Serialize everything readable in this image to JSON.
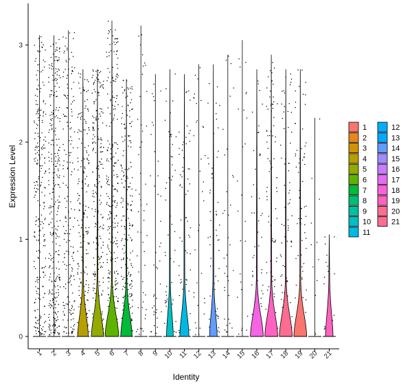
{
  "chart_data": {
    "type": "violin",
    "xlabel": "Identity",
    "ylabel": "Expression Level",
    "ylim": [
      -0.13,
      3.45
    ],
    "yticks": [
      0,
      1,
      2,
      3
    ],
    "categories": [
      "1",
      "2",
      "3",
      "4",
      "5",
      "6",
      "7",
      "8",
      "9",
      "10",
      "11",
      "12",
      "13",
      "14",
      "15",
      "16",
      "17",
      "18",
      "19",
      "20",
      "21"
    ],
    "colors": [
      "#F8766D",
      "#E88526",
      "#D39200",
      "#B79F00",
      "#93AA00",
      "#5EB300",
      "#00BA38",
      "#00BF74",
      "#00C19F",
      "#00BFC4",
      "#00B9E3",
      "#00ADFA",
      "#619CFF",
      "#AE87FF",
      "#DB72FB",
      "#F564E3",
      "#FF61C3",
      "#FF6C91",
      "#F8766D",
      "#E88526",
      "#FF62BC"
    ],
    "legend_colors": [
      "#F8766D",
      "#E8851E",
      "#D39200",
      "#B79F00",
      "#93AA00",
      "#5EB300",
      "#00BA38",
      "#00BF74",
      "#00C19F",
      "#00BFC4",
      "#00B9E3",
      "#00ADFA",
      "#00A9FF",
      "#619CFF",
      "#9F8CFF",
      "#C77CFF",
      "#E76BF3",
      "#FA62DB",
      "#FF62BC",
      "#FF6C91",
      "#FF6C91"
    ],
    "max_values": [
      3.1,
      3.1,
      3.15,
      2.75,
      2.75,
      3.25,
      2.65,
      3.2,
      2.7,
      2.75,
      2.7,
      2.8,
      2.8,
      2.9,
      3.05,
      2.75,
      2.9,
      2.75,
      2.75,
      2.25,
      1.05
    ],
    "point_density": [
      260,
      320,
      200,
      220,
      240,
      300,
      240,
      50,
      40,
      60,
      70,
      35,
      60,
      35,
      25,
      60,
      90,
      90,
      80,
      12,
      15
    ],
    "zero_bump_width": [
      0,
      0,
      0,
      0.7,
      0.8,
      0.9,
      0.75,
      0,
      0,
      0.45,
      0.6,
      0,
      0.5,
      0,
      0,
      0.85,
      0.85,
      0.85,
      0.85,
      0,
      0.5
    ],
    "legend_position": "right",
    "grid": false
  }
}
